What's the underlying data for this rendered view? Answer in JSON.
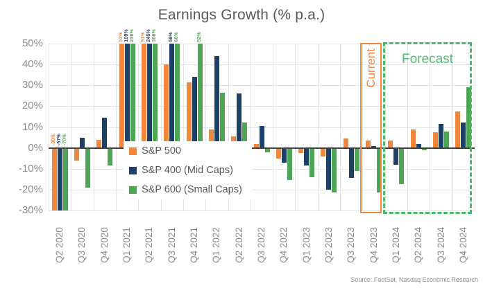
{
  "title": "Earnings Growth (% p.a.)",
  "source": "Source: FactSet, Nasdaq Economic Research",
  "annotations": {
    "current_label": "Current",
    "forecast_label": "Forecast"
  },
  "colors": {
    "sp500": "#F0873C",
    "sp400": "#1C4066",
    "sp600": "#4FA556",
    "current_accent": "#F0873C",
    "forecast_accent": "#44BC66",
    "title_text": "#595959",
    "axis_text": "#8C8C8C",
    "gridline": "#E4E4E4",
    "zero_line": "#404040"
  },
  "chart_data": {
    "type": "bar",
    "title": "Earnings Growth (% p.a.)",
    "xlabel": "",
    "ylabel": "",
    "ylim": [
      -30,
      50
    ],
    "ytick_step": 10,
    "ytick_suffix": "%",
    "grid": true,
    "legend_position": "inside-left",
    "categories": [
      "Q2 2020",
      "Q3 2020",
      "Q4 2020",
      "Q1 2021",
      "Q2 2021",
      "Q3 2021",
      "Q4 2021",
      "Q1 2022",
      "Q2 2022",
      "Q3 2022",
      "Q4 2022",
      "Q1 2023",
      "Q2 2023",
      "Q3 2023",
      "Q4 2023",
      "Q1 2024",
      "Q2 2024",
      "Q3 2024",
      "Q4 2024"
    ],
    "series": [
      {
        "name": "S&P 500",
        "color": "#F0873C",
        "values": [
          -30,
          -6,
          4,
          53,
          91,
          40,
          31.5,
          9,
          5.5,
          2,
          -5,
          -2.5,
          -4,
          4.5,
          3.5,
          3.5,
          9,
          7.5,
          17.5
        ]
      },
      {
        "name": "S&P 400 (Mid Caps)",
        "color": "#1C4066",
        "values": [
          -57,
          5,
          14.5,
          109,
          245,
          58,
          34,
          44,
          26,
          10.5,
          -7,
          -8.5,
          -20,
          -14.5,
          1,
          -8,
          2,
          11.5,
          12
        ]
      },
      {
        "name": "S&P 600 (Small Caps)",
        "color": "#4FA556",
        "values": [
          -70,
          -19,
          -8.5,
          230,
          306,
          66,
          52,
          26.5,
          12,
          -2,
          -15.5,
          -14,
          -21.5,
          -11,
          -21.5,
          -17.5,
          -1,
          8,
          29
        ]
      }
    ],
    "out_of_range_labels": [
      "-30%",
      "-57%",
      "-70%",
      "53%",
      "109%",
      "230%",
      "91%",
      "245%",
      "306%",
      "58%",
      "66%",
      "52%"
    ],
    "current_category": "Q4 2023",
    "forecast_categories": [
      "Q1 2024",
      "Q2 2024",
      "Q3 2024",
      "Q4 2024"
    ]
  }
}
